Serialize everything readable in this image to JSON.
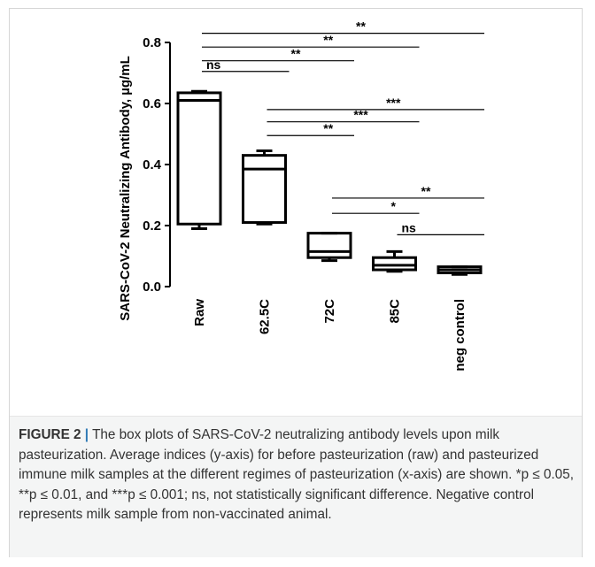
{
  "chart_data": {
    "type": "box",
    "ylabel": "SARS-CoV-2 Neutralizing Antibody, µg/mL",
    "xlabel": "",
    "ylim": [
      0,
      0.8
    ],
    "yticks": [
      0.0,
      0.2,
      0.4,
      0.6,
      0.8
    ],
    "ytick_labels": [
      "0.0",
      "0.2",
      "0.4",
      "0.6",
      "0.8"
    ],
    "categories": [
      "Raw",
      "62.5C",
      "72C",
      "85C",
      "neg control"
    ],
    "boxes": [
      {
        "category": "Raw",
        "min": 0.19,
        "q1": 0.205,
        "median": 0.61,
        "q3": 0.635,
        "max": 0.64
      },
      {
        "category": "62.5C",
        "min": 0.205,
        "q1": 0.21,
        "median": 0.385,
        "q3": 0.43,
        "max": 0.445
      },
      {
        "category": "72C",
        "min": 0.085,
        "q1": 0.095,
        "median": 0.115,
        "q3": 0.175,
        "max": 0.175
      },
      {
        "category": "85C",
        "min": 0.05,
        "q1": 0.055,
        "median": 0.07,
        "q3": 0.095,
        "max": 0.115
      },
      {
        "category": "neg control",
        "min": 0.04,
        "q1": 0.045,
        "median": 0.055,
        "q3": 0.065,
        "max": 0.065
      }
    ],
    "significance": [
      {
        "from": "Raw",
        "to": "neg control",
        "label": "**",
        "y": 0.83
      },
      {
        "from": "Raw",
        "to": "85C",
        "label": "**",
        "y": 0.785
      },
      {
        "from": "Raw",
        "to": "72C",
        "label": "**",
        "y": 0.74
      },
      {
        "from": "Raw",
        "to": "62.5C",
        "label": "ns",
        "y": 0.705
      },
      {
        "from": "62.5C",
        "to": "neg control",
        "label": "***",
        "y": 0.58
      },
      {
        "from": "62.5C",
        "to": "85C",
        "label": "***",
        "y": 0.54
      },
      {
        "from": "62.5C",
        "to": "72C",
        "label": "**",
        "y": 0.495
      },
      {
        "from": "72C",
        "to": "neg control",
        "label": "**",
        "y": 0.29
      },
      {
        "from": "72C",
        "to": "85C",
        "label": "*",
        "y": 0.24
      },
      {
        "from": "85C",
        "to": "neg control",
        "label": "ns",
        "y": 0.17
      }
    ]
  },
  "caption": {
    "label": "FIGURE 2",
    "separator": "|",
    "text": "The box plots of SARS-CoV-2 neutralizing antibody levels upon milk pasteurization. Average indices (y-axis) for before pasteurization (raw) and pasteurized immune milk samples at the different regimes of pasteurization (x-axis) are shown. *p ≤ 0.05, **p ≤ 0.01, and ***p ≤ 0.001; ns, not statistically significant difference. Negative control represents milk sample from non-vaccinated animal."
  }
}
